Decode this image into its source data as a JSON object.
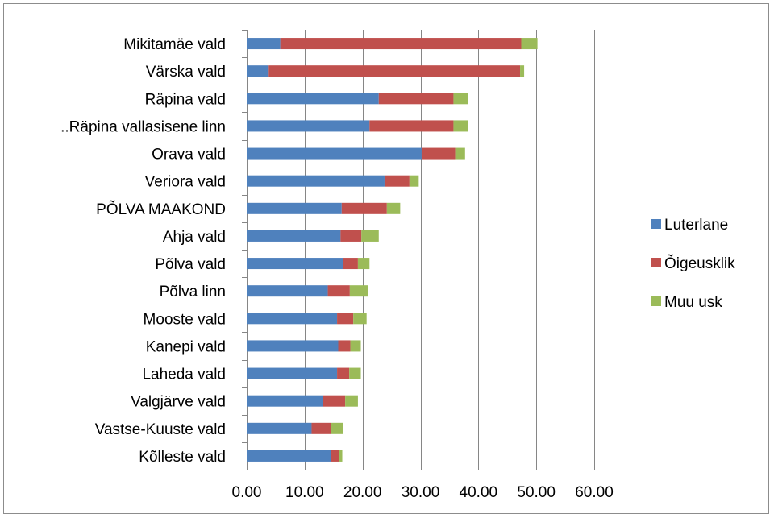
{
  "chart_data": {
    "type": "bar",
    "orientation": "horizontal",
    "stacked": true,
    "categories": [
      "Mikitamäe vald",
      "Värska vald",
      "Räpina vald",
      "..Räpina vallasisene linn",
      "Orava vald",
      "Veriora vald",
      "PÕLVA MAAKOND",
      "Ahja vald",
      "Põlva vald",
      "Põlva linn",
      "Mooste vald",
      "Kanepi vald",
      "Laheda vald",
      "Valgjärve vald",
      "Vastse-Kuuste vald",
      "Kõlleste vald"
    ],
    "series": [
      {
        "name": "Luterlane",
        "color": "#4f81bd",
        "values": [
          5.8,
          3.8,
          22.8,
          21.2,
          30.2,
          23.8,
          16.4,
          16.2,
          16.6,
          14.0,
          15.6,
          15.8,
          15.6,
          13.2,
          11.2,
          14.6
        ]
      },
      {
        "name": "Õigeusklik",
        "color": "#c0504d",
        "values": [
          41.6,
          43.4,
          12.9,
          14.5,
          5.8,
          4.3,
          7.8,
          3.6,
          2.6,
          3.8,
          2.8,
          2.1,
          2.1,
          3.8,
          3.4,
          1.4
        ]
      },
      {
        "name": "Muu usk",
        "color": "#9bbb59",
        "values": [
          2.8,
          0.7,
          2.5,
          2.5,
          1.7,
          1.6,
          2.3,
          3.0,
          2.0,
          3.2,
          2.3,
          1.8,
          2.0,
          2.2,
          2.1,
          0.5
        ]
      }
    ],
    "x_ticks": [
      "0.00",
      "10.00",
      "20.00",
      "30.00",
      "40.00",
      "50.00",
      "60.00"
    ],
    "xlim": [
      0,
      60
    ],
    "grid": "vertical major gridlines",
    "legend_position": "right"
  }
}
